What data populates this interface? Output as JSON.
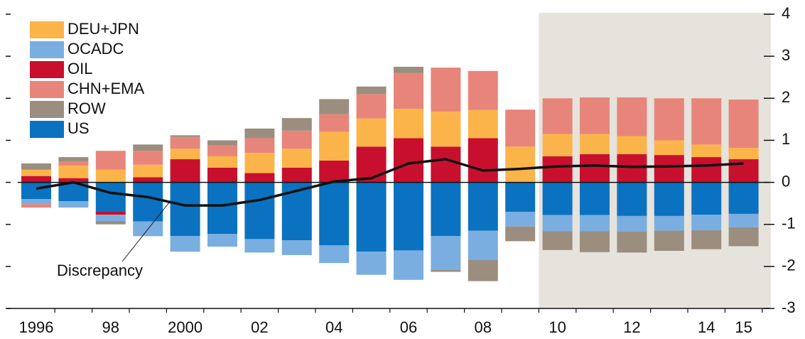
{
  "chart_data": {
    "type": "stacked-bar-line",
    "categories": [
      "1996",
      null,
      "98",
      null,
      "2000",
      null,
      "02",
      null,
      "04",
      null,
      "06",
      null,
      "08",
      null,
      "10",
      null,
      "12",
      null,
      "14",
      "15"
    ],
    "series": [
      {
        "name": "DEU+JPN",
        "color": "#fbb44a",
        "values": [
          0.15,
          0.3,
          0.3,
          0.3,
          0.25,
          0.27,
          0.48,
          0.45,
          0.68,
          0.67,
          0.7,
          0.83,
          0.67,
          0.85,
          0.53,
          0.48,
          0.43,
          0.35,
          0.3,
          0.27
        ]
      },
      {
        "name": "OCADC",
        "color": "#7aaee0",
        "values": [
          -0.12,
          -0.15,
          -0.15,
          -0.35,
          -0.37,
          -0.3,
          -0.32,
          -0.35,
          -0.42,
          -0.55,
          -0.7,
          -0.8,
          -0.7,
          -0.35,
          -0.38,
          -0.38,
          -0.37,
          -0.35,
          -0.37,
          -0.32
        ]
      },
      {
        "name": "OIL",
        "color": "#c8102e",
        "values": [
          0.15,
          0.1,
          -0.07,
          0.12,
          0.55,
          0.35,
          0.22,
          0.35,
          0.52,
          0.85,
          1.05,
          0.85,
          1.05,
          0,
          0.62,
          0.67,
          0.67,
          0.65,
          0.6,
          0.55
        ]
      },
      {
        "name": "CHN+EMA",
        "color": "#e8857a",
        "values": [
          -0.08,
          0.1,
          0.45,
          0.33,
          0.28,
          0.26,
          0.35,
          0.43,
          0.42,
          0.58,
          0.85,
          1.05,
          0.93,
          0.88,
          0.85,
          0.87,
          0.92,
          1.0,
          1.1,
          1.15
        ]
      },
      {
        "name": "ROW",
        "color": "#9b8e7e",
        "values": [
          0.15,
          0.1,
          -0.08,
          0.15,
          0.04,
          0.12,
          0.23,
          0.3,
          0.36,
          0.18,
          0.15,
          -0.05,
          -0.5,
          -0.35,
          -0.45,
          -0.5,
          -0.5,
          -0.48,
          -0.45,
          -0.45
        ]
      },
      {
        "name": "US",
        "color": "#0a72c0",
        "values": [
          -0.4,
          -0.45,
          -0.7,
          -0.93,
          -1.28,
          -1.23,
          -1.35,
          -1.38,
          -1.5,
          -1.65,
          -1.62,
          -1.28,
          -1.15,
          -0.7,
          -0.78,
          -0.78,
          -0.8,
          -0.8,
          -0.77,
          -0.75
        ]
      }
    ],
    "line": {
      "name": "Discrepancy",
      "color": "#111111",
      "values": [
        -0.15,
        0,
        -0.25,
        -0.35,
        -0.55,
        -0.55,
        -0.42,
        -0.2,
        0.02,
        0.1,
        0.45,
        0.55,
        0.28,
        0.32,
        0.38,
        0.4,
        0.37,
        0.38,
        0.4,
        0.45
      ]
    },
    "shaded_region": {
      "from": "10",
      "to": "15",
      "color": "#e6e2dc"
    },
    "ylim": [
      -3,
      4
    ],
    "yticks": [
      4,
      3,
      2,
      1,
      0,
      -1,
      -2,
      -3
    ],
    "legend": "top-left"
  }
}
